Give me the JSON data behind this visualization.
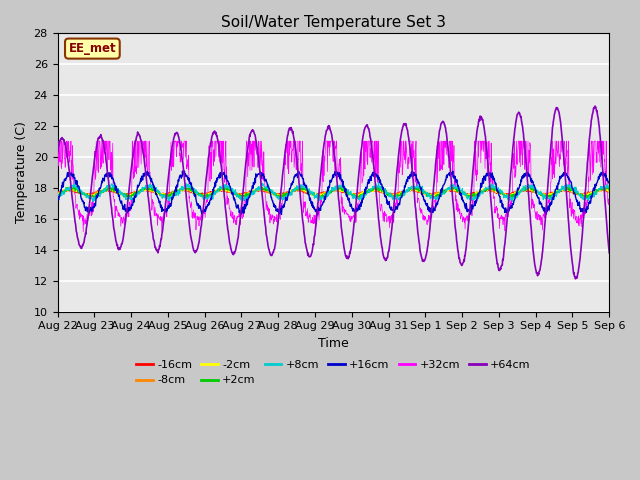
{
  "title": "Soil/Water Temperature Set 3",
  "xlabel": "Time",
  "ylabel": "Temperature (C)",
  "ylim": [
    10,
    28
  ],
  "yticks": [
    10,
    12,
    14,
    16,
    18,
    20,
    22,
    24,
    26,
    28
  ],
  "fig_bg": "#c8c8c8",
  "plot_bg": "#e8e8e8",
  "legend_entries": [
    "-16cm",
    "-8cm",
    "-2cm",
    "+2cm",
    "+8cm",
    "+16cm",
    "+32cm",
    "+64cm"
  ],
  "legend_colors": [
    "#ff0000",
    "#ff8800",
    "#ffff00",
    "#00cc00",
    "#00cccc",
    "#0000cc",
    "#ff00ff",
    "#8800bb"
  ],
  "annotation_text": "EE_met",
  "annotation_bg": "#ffffaa",
  "annotation_border": "#883300",
  "x_labels": [
    "Aug 22",
    "Aug 23",
    "Aug 24",
    "Aug 25",
    "Aug 26",
    "Aug 27",
    "Aug 28",
    "Aug 29",
    "Aug 30",
    "Aug 31",
    "Sep 1",
    "Sep 2",
    "Sep 3",
    "Sep 4",
    "Sep 5",
    "Sep 6"
  ],
  "base_temp": 17.7,
  "seed": 42
}
